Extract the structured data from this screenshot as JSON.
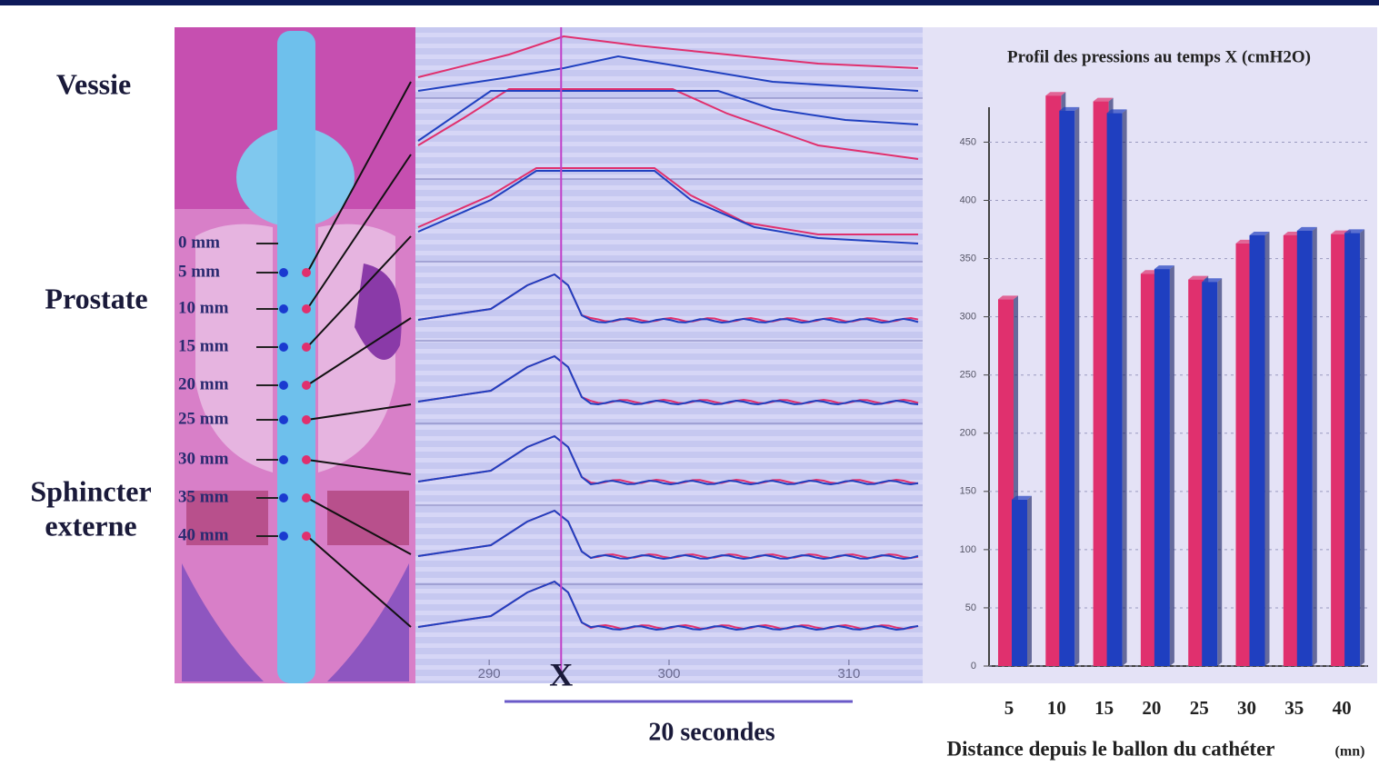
{
  "anatomy": {
    "vessie": "Vessie",
    "prostate": "Prostate",
    "sphincter": [
      "Sphincter",
      "externe"
    ],
    "depths": [
      "0 mm",
      "5 mm",
      "10 mm",
      "15 mm",
      "20 mm",
      "25 mm",
      "30 mm",
      "35 mm",
      "40 mm"
    ]
  },
  "traces": {
    "xlim": [
      285.9,
      314.1
    ],
    "xticks": [
      290,
      300,
      310
    ],
    "marker": {
      "value": 294,
      "label": "X"
    },
    "scale_label": "20 secondes"
  },
  "chart_data": {
    "type": "bar",
    "title": "Profil des pressions au temps X (cmH2O)",
    "xlabel": "Distance depuis le ballon du cathéter",
    "xlabel_unit": "(mn)",
    "categories": [
      "5",
      "10",
      "15",
      "20",
      "25",
      "30",
      "35",
      "40"
    ],
    "series": [
      {
        "color": "#e0306e",
        "values": [
          315,
          490,
          485,
          337,
          332,
          363,
          370,
          371
        ]
      },
      {
        "color": "#1f3fc0",
        "values": [
          143,
          477,
          475,
          341,
          330,
          370,
          374,
          372
        ]
      }
    ],
    "ylim": [
      0,
      480
    ],
    "yticks": [
      0,
      50,
      100,
      150,
      200,
      250,
      300,
      350,
      400,
      450
    ],
    "grid": true
  }
}
